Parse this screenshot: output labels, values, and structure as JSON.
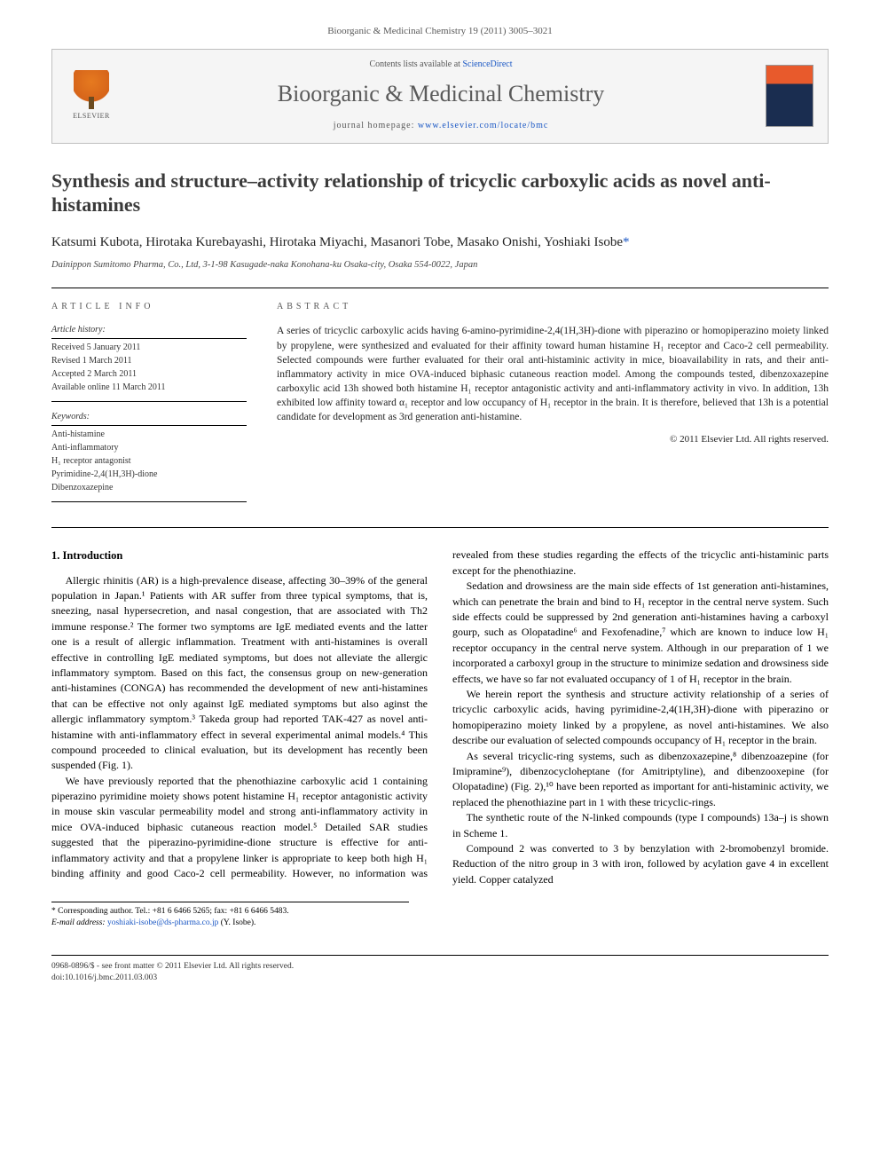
{
  "journal_ref": "Bioorganic & Medicinal Chemistry 19 (2011) 3005–3021",
  "header": {
    "contents_prefix": "Contents lists available at ",
    "contents_link": "ScienceDirect",
    "journal_name": "Bioorganic & Medicinal Chemistry",
    "homepage_prefix": "journal homepage: ",
    "homepage_url": "www.elsevier.com/locate/bmc",
    "publisher_label": "ELSEVIER"
  },
  "title": "Synthesis and structure–activity relationship of tricyclic carboxylic acids as novel anti-histamines",
  "authors": "Katsumi Kubota, Hirotaka Kurebayashi, Hirotaka Miyachi, Masanori Tobe, Masako Onishi, Yoshiaki Isobe",
  "corr_marker": "*",
  "affiliation": "Dainippon Sumitomo Pharma, Co., Ltd, 3-1-98 Kasugade-naka Konohana-ku Osaka-city, Osaka 554-0022, Japan",
  "article_info": {
    "heading": "ARTICLE INFO",
    "history_label": "Article history:",
    "history": [
      "Received 5 January 2011",
      "Revised 1 March 2011",
      "Accepted 2 March 2011",
      "Available online 11 March 2011"
    ],
    "keywords_label": "Keywords:",
    "keywords": [
      "Anti-histamine",
      "Anti-inflammatory",
      "H₁ receptor antagonist",
      "Pyrimidine-2,4(1H,3H)-dione",
      "Dibenzoxazepine"
    ]
  },
  "abstract": {
    "heading": "ABSTRACT",
    "text": "A series of tricyclic carboxylic acids having 6-amino-pyrimidine-2,4(1H,3H)-dione with piperazino or homopiperazino moiety linked by propylene, were synthesized and evaluated for their affinity toward human histamine H₁ receptor and Caco-2 cell permeability. Selected compounds were further evaluated for their oral anti-histaminic activity in mice, bioavailability in rats, and their anti-inflammatory activity in mice OVA-induced biphasic cutaneous reaction model. Among the compounds tested, dibenzoxazepine carboxylic acid 13h showed both histamine H₁ receptor antagonistic activity and anti-inflammatory activity in vivo. In addition, 13h exhibited low affinity toward α₁ receptor and low occupancy of H₁ receptor in the brain. It is therefore, believed that 13h is a potential candidate for development as 3rd generation anti-histamine.",
    "copyright": "© 2011 Elsevier Ltd. All rights reserved."
  },
  "section1": {
    "heading": "1. Introduction",
    "p1": "Allergic rhinitis (AR) is a high-prevalence disease, affecting 30–39% of the general population in Japan.¹ Patients with AR suffer from three typical symptoms, that is, sneezing, nasal hypersecretion, and nasal congestion, that are associated with Th2 immune response.² The former two symptoms are IgE mediated events and the latter one is a result of allergic inflammation. Treatment with anti-histamines is overall effective in controlling IgE mediated symptoms, but does not alleviate the allergic inflammatory symptom. Based on this fact, the consensus group on new-generation anti-histamines (CONGA) has recommended the development of new anti-histamines that can be effective not only against IgE mediated symptoms but also aginst the allergic inflammatory symptom.³ Takeda group had reported TAK-427 as novel anti-histamine with anti-inflammatory effect in several experimental animal models.⁴ This compound proceeded to clinical evaluation, but its development has recently been suspended (Fig. 1).",
    "p2": "We have previously reported that the phenothiazine carboxylic acid 1 containing piperazino pyrimidine moiety shows potent histamine H₁ receptor antagonistic activity in mouse skin vascular permeability model and strong anti-inflammatory activity in mice OVA-induced biphasic cutaneous reaction model.⁵ Detailed SAR studies suggested that the piperazino-pyrimidine-dione structure is effective for anti-inflammatory activity and that a propylene linker is appropriate to keep both high H₁ binding affinity and good Caco-2 cell permeability. However, no information was revealed from these studies regarding the effects of the tricyclic anti-histaminic parts except for the phenothiazine.",
    "p3": "Sedation and drowsiness are the main side effects of 1st generation anti-histamines, which can penetrate the brain and bind to H₁ receptor in the central nerve system. Such side effects could be suppressed by 2nd generation anti-histamines having a carboxyl gourp, such as Olopatadine⁶ and Fexofenadine,⁷ which are known to induce low H₁ receptor occupancy in the central nerve system. Although in our preparation of 1 we incorporated a carboxyl group in the structure to minimize sedation and drowsiness side effects, we have so far not evaluated occupancy of 1 of H₁ receptor in the brain.",
    "p4": "We herein report the synthesis and structure activity relationship of a series of tricyclic carboxylic acids, having pyrimidine-2,4(1H,3H)-dione with piperazino or homopiperazino moiety linked by a propylene, as novel anti-histamines. We also describe our evaluation of selected compounds occupancy of H₁ receptor in the brain.",
    "p5": "As several tricyclic-ring systems, such as dibenzoxazepine,⁸ dibenzoazepine (for Imipramine⁹), dibenzocycloheptane (for Amitriptyline), and dibenzooxepine (for Olopatadine) (Fig. 2),¹⁰ have been reported as important for anti-histaminic activity, we replaced the phenothiazine part in 1 with these tricyclic-rings.",
    "p6": "The synthetic route of the N-linked compounds (type I compounds) 13a–j is shown in Scheme 1.",
    "p7": "Compound 2 was converted to 3 by benzylation with 2-bromobenzyl bromide. Reduction of the nitro group in 3 with iron, followed by acylation gave 4 in excellent yield. Copper catalyzed"
  },
  "corresponding": {
    "label": "* Corresponding author. Tel.: +81 6 6466 5265; fax: +81 6 6466 5483.",
    "email_label": "E-mail address:",
    "email": "yoshiaki-isobe@ds-pharma.co.jp",
    "email_name": "(Y. Isobe)."
  },
  "footer": {
    "left1": "0968-0896/$ - see front matter © 2011 Elsevier Ltd. All rights reserved.",
    "left2": "doi:10.1016/j.bmc.2011.03.003"
  },
  "colors": {
    "link": "#1a57c4",
    "text": "#000000",
    "muted": "#5a5a5a",
    "border": "#bfbfbf",
    "header_bg": "#f5f5f5",
    "elsevier_orange": "#e67a1f"
  },
  "typography": {
    "title_fontsize": 22,
    "journal_fontsize": 26,
    "body_fontsize": 12,
    "abstract_fontsize": 11.5,
    "info_fontsize": 10
  }
}
